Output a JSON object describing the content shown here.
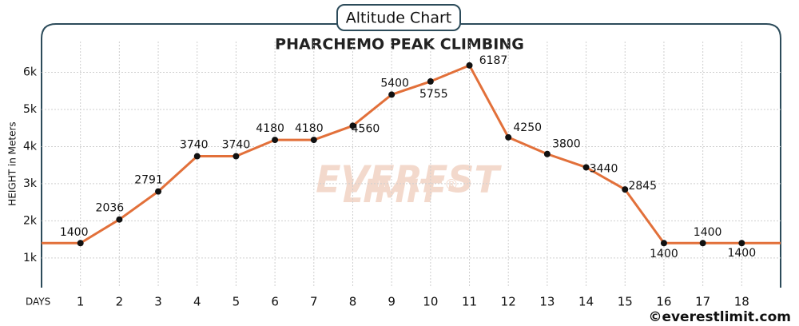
{
  "header": "Altitude Chart",
  "footer": "©everestlimit.com",
  "watermark": [
    "EVEREST",
    "LIMIT",
    "®"
  ],
  "chart_data": {
    "type": "line",
    "title": "PHARCHEMO PEAK CLIMBING",
    "x_label": "DAYS",
    "y_label": "HEIGHT in Meters",
    "x": [
      1,
      2,
      3,
      4,
      5,
      6,
      7,
      8,
      9,
      10,
      11,
      12,
      13,
      14,
      15,
      16,
      17,
      18
    ],
    "series": [
      {
        "name": "Altitude",
        "color": "#e2703a",
        "values": [
          1400,
          2036,
          2791,
          3740,
          3740,
          4180,
          4180,
          4560,
          5400,
          5755,
          6187,
          4250,
          3800,
          3440,
          2845,
          1400,
          1400,
          1400
        ]
      }
    ],
    "xlim": [
      0,
      19
    ],
    "xticks": [
      1,
      2,
      3,
      4,
      5,
      6,
      7,
      8,
      9,
      10,
      11,
      12,
      13,
      14,
      15,
      16,
      17,
      18
    ],
    "ylim": [
      200,
      6700
    ],
    "yticks": [
      {
        "value": 1000,
        "label": "1k"
      },
      {
        "value": 2000,
        "label": "2k"
      },
      {
        "value": 3000,
        "label": "3k"
      },
      {
        "value": 4000,
        "label": "4k"
      },
      {
        "value": 5000,
        "label": "5k"
      },
      {
        "value": 6000,
        "label": "6k"
      }
    ],
    "grid": true
  }
}
